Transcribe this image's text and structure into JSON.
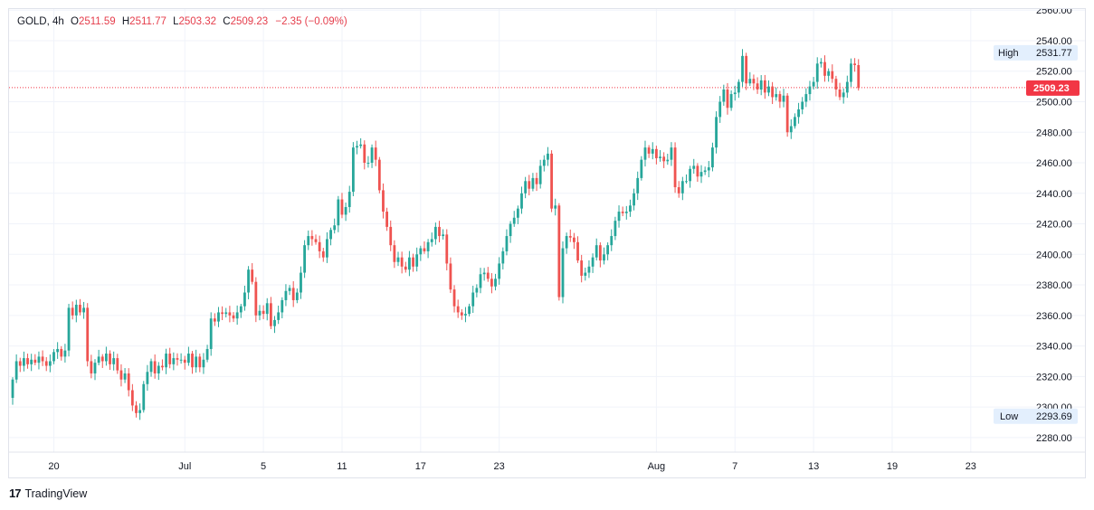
{
  "legend": {
    "symbol": "GOLD",
    "interval": "4h",
    "open_label": "O",
    "open": "2511.59",
    "high_label": "H",
    "high": "2511.77",
    "low_label": "L",
    "low": "2503.32",
    "close_label": "C",
    "close": "2509.23",
    "change": "−2.35 (−0.09%)"
  },
  "badges": {
    "high_label": "High",
    "high_value": "2531.77",
    "low_label": "Low",
    "low_value": "2293.69",
    "last_price": "2509.23"
  },
  "footer": {
    "brand": "TradingView",
    "logo_glyph": "17"
  },
  "colors": {
    "up": "#26a69a",
    "down": "#ef5350",
    "last_price": "#f23645",
    "grid": "#f0f3fa",
    "badge_bg": "#e3effd"
  },
  "chart_data": {
    "type": "candlestick",
    "title": "GOLD, 4h",
    "ylim": [
      2272,
      2560
    ],
    "yticks": [
      "2280.00",
      "2300.00",
      "2320.00",
      "2340.00",
      "2360.00",
      "2380.00",
      "2400.00",
      "2420.00",
      "2440.00",
      "2460.00",
      "2480.00",
      "2500.00",
      "2520.00",
      "2540.00",
      "2560.00"
    ],
    "xticks": [
      {
        "label": "20",
        "i": 11
      },
      {
        "label": "Jul",
        "i": 46
      },
      {
        "label": "5",
        "i": 67
      },
      {
        "label": "11",
        "i": 88
      },
      {
        "label": "17",
        "i": 109
      },
      {
        "label": "23",
        "i": 130
      },
      {
        "label": "Aug",
        "i": 172
      },
      {
        "label": "7",
        "i": 193
      },
      {
        "label": "13",
        "i": 214
      },
      {
        "label": "19",
        "i": 235
      },
      {
        "label": "23",
        "i": 256
      }
    ],
    "grid": true,
    "last_price": 2509.23,
    "high": 2531.77,
    "low": 2293.69,
    "closes": [
      2318,
      2330,
      2327,
      2332,
      2328,
      2331,
      2329,
      2333,
      2330,
      2327,
      2330,
      2336,
      2338,
      2333,
      2337,
      2365,
      2360,
      2367,
      2362,
      2365,
      2330,
      2322,
      2329,
      2333,
      2330,
      2335,
      2328,
      2332,
      2324,
      2318,
      2322,
      2311,
      2301,
      2296,
      2298,
      2315,
      2323,
      2330,
      2322,
      2327,
      2326,
      2335,
      2328,
      2332,
      2331,
      2331,
      2329,
      2335,
      2326,
      2333,
      2326,
      2331,
      2338,
      2358,
      2356,
      2362,
      2361,
      2362,
      2360,
      2358,
      2362,
      2366,
      2375,
      2390,
      2382,
      2360,
      2363,
      2361,
      2368,
      2353,
      2357,
      2362,
      2370,
      2376,
      2378,
      2370,
      2375,
      2388,
      2406,
      2412,
      2410,
      2408,
      2402,
      2398,
      2410,
      2416,
      2419,
      2436,
      2426,
      2431,
      2441,
      2470,
      2471,
      2472,
      2460,
      2460,
      2470,
      2462,
      2442,
      2428,
      2418,
      2406,
      2395,
      2398,
      2392,
      2390,
      2398,
      2392,
      2400,
      2404,
      2402,
      2408,
      2410,
      2418,
      2412,
      2413,
      2394,
      2377,
      2366,
      2362,
      2360,
      2361,
      2366,
      2375,
      2378,
      2387,
      2388,
      2384,
      2379,
      2384,
      2394,
      2402,
      2412,
      2420,
      2424,
      2430,
      2440,
      2448,
      2443,
      2450,
      2446,
      2458,
      2462,
      2466,
      2430,
      2432,
      2372,
      2404,
      2412,
      2411,
      2408,
      2396,
      2386,
      2388,
      2392,
      2398,
      2406,
      2396,
      2400,
      2406,
      2412,
      2422,
      2428,
      2427,
      2428,
      2432,
      2440,
      2450,
      2462,
      2470,
      2466,
      2469,
      2463,
      2464,
      2461,
      2462,
      2470,
      2444,
      2440,
      2448,
      2448,
      2456,
      2458,
      2451,
      2454,
      2455,
      2457,
      2470,
      2490,
      2500,
      2508,
      2496,
      2505,
      2506,
      2513,
      2530,
      2512,
      2515,
      2512,
      2508,
      2514,
      2506,
      2510,
      2503,
      2505,
      2500,
      2504,
      2480,
      2484,
      2490,
      2495,
      2500,
      2505,
      2510,
      2513,
      2525,
      2526,
      2517,
      2520,
      2515,
      2508,
      2503,
      2506,
      2513,
      2525,
      2524,
      2509
    ]
  }
}
